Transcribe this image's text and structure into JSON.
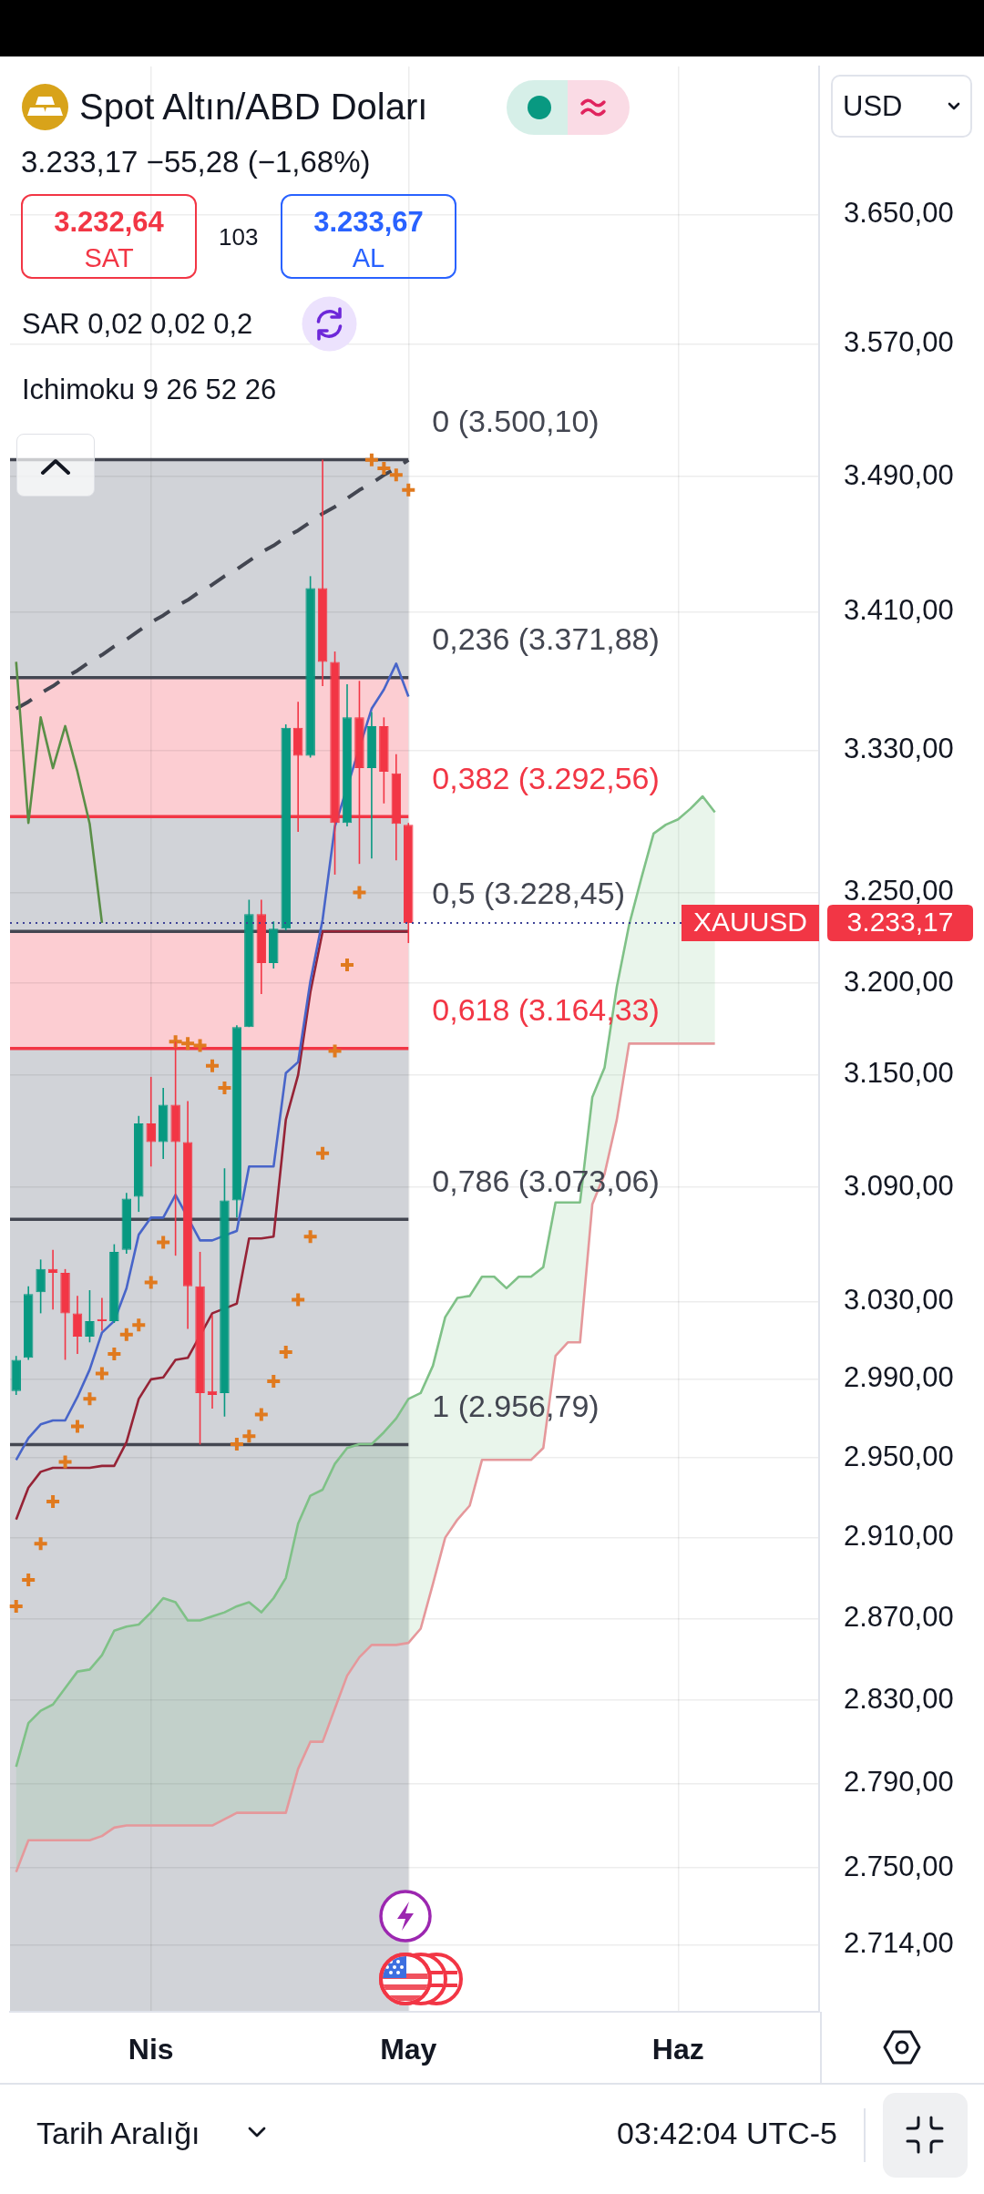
{
  "chart_data": {
    "type": "candlestick",
    "title": "Spot Altın/ABD Doları",
    "subtitle": "3.233,17 −55,28 (−1,68%)",
    "annotations": [
      "3.232,64",
      "SAT",
      "103",
      "3.233,67",
      "AL",
      "SAR 0,02 0,02 0,2",
      "Ichimoku 9 26 52 26",
      "USD",
      "Tarih Aralığı",
      "03:42:04 UTC-5",
      "3.233,17"
    ],
    "categories": [
      null,
      null,
      null,
      null,
      null,
      null,
      null,
      null,
      null,
      null,
      null,
      "Nis",
      null,
      null,
      null,
      null,
      null,
      null,
      null,
      null,
      null,
      null,
      null,
      null,
      null,
      null,
      null,
      null,
      null,
      null,
      null,
      null,
      "May",
      null,
      null,
      null,
      null,
      null,
      null,
      null,
      null,
      null,
      null,
      null,
      null,
      null,
      null,
      null,
      null,
      null,
      null,
      null,
      null,
      null,
      "Haz",
      null,
      null,
      null,
      null,
      null,
      null,
      null,
      null,
      null,
      null,
      null
    ],
    "ohlc": [
      [
        2984,
        3002,
        2982,
        3000
      ],
      [
        3001,
        3038,
        3000,
        3034
      ],
      [
        3035,
        3052,
        3024,
        3047
      ],
      [
        3047,
        3057,
        3026,
        3045
      ],
      [
        3045,
        3047,
        3000,
        3024
      ],
      [
        3024,
        3033,
        3003,
        3012
      ],
      [
        3012,
        3036,
        3009,
        3020
      ],
      [
        3021,
        3032,
        3015,
        3020
      ],
      [
        3020,
        3060,
        3019,
        3056
      ],
      [
        3057,
        3087,
        3055,
        3084
      ],
      [
        3085,
        3128,
        3077,
        3124
      ],
      [
        3124,
        3149,
        3101,
        3114
      ],
      [
        3114,
        3143,
        3105,
        3134
      ],
      [
        3134,
        3168,
        3054,
        3114
      ],
      [
        3114,
        3136,
        3016,
        3038
      ],
      [
        3038,
        3056,
        2956.79,
        2983
      ],
      [
        2984,
        3023,
        2975,
        2982
      ],
      [
        2983,
        3100,
        2971,
        3083
      ],
      [
        3083,
        3177,
        3074,
        3176
      ],
      [
        3176,
        3246,
        3176,
        3238
      ],
      [
        3238,
        3246,
        3194,
        3211
      ],
      [
        3211,
        3234,
        3208,
        3230
      ],
      [
        3230,
        3345,
        3229,
        3343
      ],
      [
        3343,
        3358,
        3284,
        3327
      ],
      [
        3327,
        3431,
        3326,
        3424
      ],
      [
        3424,
        3500.1,
        3367,
        3381
      ],
      [
        3381,
        3387,
        3260,
        3289
      ],
      [
        3289,
        3368,
        3287,
        3349
      ],
      [
        3349,
        3370,
        3266,
        3320
      ],
      [
        3320,
        3352,
        3269,
        3344
      ],
      [
        3344,
        3349,
        3300,
        3318
      ],
      [
        3317,
        3328,
        3268,
        3288.45
      ],
      [
        3288,
        3289,
        3222,
        3233.17
      ],
      null,
      null,
      null,
      null,
      null,
      null,
      null,
      null,
      null,
      null,
      null,
      null,
      null,
      null,
      null,
      null,
      null,
      null,
      null,
      null,
      null,
      null,
      null,
      null,
      null,
      null,
      null,
      null,
      null,
      null,
      null,
      null,
      null
    ],
    "colors": [
      "#089981",
      "#089981",
      "#089981",
      "#f23645",
      "#f23645",
      "#f23645",
      "#089981",
      "#f23645",
      "#089981",
      "#089981",
      "#089981",
      "#f23645",
      "#089981",
      "#f23645",
      "#f23645",
      "#f23645",
      "#f23645",
      "#089981",
      "#089981",
      "#089981",
      "#f23645",
      "#089981",
      "#089981",
      "#f23645",
      "#089981",
      "#f23645",
      "#f23645",
      "#089981",
      "#f23645",
      "#089981",
      "#f23645",
      "#f23645",
      "#f23645",
      null,
      null,
      null,
      null,
      null,
      null,
      null,
      null,
      null,
      null,
      null,
      null,
      null,
      null,
      null,
      null,
      null,
      null,
      null,
      null,
      null,
      null,
      null,
      null,
      null,
      null,
      null,
      null,
      null,
      null,
      null,
      null,
      null
    ],
    "series": [
      {
        "type": "line",
        "color": "#5a8f47",
        "values": [
          3381,
          3289,
          3349,
          3320,
          3344,
          3318,
          3288.45,
          3233.17,
          null,
          null,
          null,
          null,
          null,
          null,
          null,
          null,
          null,
          null,
          null,
          null,
          null,
          null,
          null,
          null,
          null,
          null,
          null,
          null,
          null,
          null,
          null,
          null,
          null,
          null,
          null,
          null,
          null,
          null,
          null,
          null,
          null,
          null,
          null,
          null,
          null,
          null,
          null,
          null,
          null,
          null,
          null,
          null,
          null,
          null,
          null,
          null,
          null,
          null,
          null,
          null,
          null,
          null,
          null,
          null,
          null,
          null
        ]
      },
      {
        "type": "line",
        "color": "#7fc187",
        "values": [
          2798,
          2819,
          2825,
          2828,
          2836,
          2844,
          2845,
          2852,
          2864,
          2866,
          2867,
          2873,
          2880,
          2878,
          2869,
          2869,
          2871,
          2873,
          2876,
          2878,
          2873,
          2880,
          2890,
          2917,
          2931,
          2934,
          2947,
          2955,
          2957,
          2957,
          2963,
          2970,
          2980,
          2983,
          2997,
          3022,
          3032,
          3033,
          3043,
          3043,
          3037,
          3043,
          3043,
          3048,
          3082,
          3082,
          3082,
          3138,
          3154,
          3198,
          3232,
          3258,
          3283,
          3288,
          3291,
          3297,
          3304,
          3295,
          null,
          null,
          null,
          null,
          null,
          null,
          null,
          null
        ],
        "upper": [
          2798,
          2819,
          2825,
          2828,
          2836,
          2844,
          2845,
          2852,
          2864,
          2866,
          2867,
          2873,
          2880,
          2878,
          2869,
          2869,
          2871,
          2873,
          2876,
          2878,
          2873,
          2880,
          2890,
          2917,
          2931,
          2934,
          2947,
          2955,
          2957,
          2957,
          2963,
          2970,
          2980,
          2983,
          2997,
          3022,
          3032,
          3033,
          3043,
          3043,
          3037,
          3043,
          3043,
          3048,
          3082,
          3082,
          3082,
          3138,
          3154,
          3198,
          3232,
          3258,
          3283,
          3288,
          3291,
          3297,
          3304,
          3295,
          null,
          null,
          null,
          null,
          null,
          null,
          null,
          null
        ],
        "lower": [
          2748,
          2763,
          2763,
          2763,
          2763,
          2763,
          2763,
          2765,
          2769,
          2770,
          2770,
          2770,
          2770,
          2770,
          2770,
          2770,
          2770,
          2773,
          2776,
          2776,
          2776,
          2776,
          2776,
          2797,
          2810,
          2810,
          2826,
          2842,
          2851,
          2857,
          2857,
          2857,
          2858,
          2865,
          2887,
          2910,
          2919,
          2926,
          2949,
          2949,
          2949,
          2949,
          2949,
          2955,
          3002,
          3009,
          3009,
          3081,
          3097,
          3126,
          3167,
          3167,
          3167,
          3167,
          3167,
          3167,
          3167,
          3167,
          null,
          null,
          null,
          null,
          null,
          null,
          null,
          null
        ]
      },
      {
        "type": "line",
        "color": "#e5989b",
        "values": [
          2748,
          2763,
          2763,
          2763,
          2763,
          2763,
          2763,
          2765,
          2769,
          2770,
          2770,
          2770,
          2770,
          2770,
          2770,
          2770,
          2770,
          2773,
          2776,
          2776,
          2776,
          2776,
          2776,
          2797,
          2810,
          2810,
          2826,
          2842,
          2851,
          2857,
          2857,
          2857,
          2858,
          2865,
          2887,
          2910,
          2919,
          2926,
          2949,
          2949,
          2949,
          2949,
          2949,
          2955,
          3002,
          3009,
          3009,
          3081,
          3097,
          3126,
          3167,
          3167,
          3167,
          3167,
          3167,
          3167,
          3167,
          3167,
          null,
          null,
          null,
          null,
          null,
          null,
          null,
          null
        ]
      },
      {
        "type": "line",
        "color": "#4865c9",
        "values": [
          2949,
          2960,
          2967,
          2969,
          2969,
          2981,
          2995,
          3014,
          3020,
          3037,
          3065,
          3074,
          3074,
          3086,
          null,
          3062,
          3062,
          null,
          3067,
          3101,
          3101,
          3101,
          3151,
          3157,
          3201,
          3235,
          3287,
          null,
          null,
          3354,
          3365,
          3380,
          3361,
          null,
          null,
          null,
          null,
          null,
          null,
          null,
          null,
          null,
          null,
          null,
          null,
          null,
          null,
          null,
          null,
          null,
          null,
          null,
          null,
          null,
          null,
          null,
          null,
          null,
          null,
          null,
          null,
          null,
          null,
          null,
          null,
          null
        ]
      },
      {
        "type": "line",
        "color": "#962336",
        "values": [
          2919,
          2935,
          2943,
          2945,
          2945,
          2945,
          2945,
          2946,
          2946,
          2958,
          2980,
          2990,
          2991,
          3000,
          3001,
          null,
          3024,
          null,
          3029,
          3063,
          3063,
          3064,
          3126,
          3150,
          3195,
          3228.45,
          3228.45,
          3228.45,
          3228.45,
          3228.45,
          3228.45,
          3228.45,
          3228.45,
          null,
          null,
          null,
          null,
          null,
          null,
          null,
          null,
          null,
          null,
          null,
          null,
          null,
          null,
          null,
          null,
          null,
          null,
          null,
          null,
          null,
          null,
          null,
          null,
          null,
          null,
          null,
          null,
          null,
          null,
          null,
          null,
          null
        ]
      },
      {
        "type": "line",
        "color": "#434651",
        "line_style": "dashed",
        "values": [
          3354,
          3358,
          3363,
          3367,
          3372,
          3376,
          3381,
          3385,
          3390,
          3394,
          3399,
          3404,
          3408,
          3413,
          3417,
          3422,
          3426,
          3431,
          3435,
          3440,
          3445,
          3449,
          3454,
          3458,
          3463,
          3468,
          3472,
          3477,
          3482,
          3486,
          3491,
          3495,
          3500,
          null,
          null,
          null,
          null,
          null,
          null,
          null,
          null,
          null,
          null,
          null,
          null,
          null,
          null,
          null,
          null,
          null,
          null,
          null,
          null,
          null,
          null,
          null,
          null,
          null,
          null,
          null,
          null,
          null,
          null,
          null,
          null,
          null
        ]
      },
      {
        "type": "scatter",
        "color": "#e07a1f",
        "marker": "cross",
        "values": [
          2876,
          2889,
          2907,
          2928,
          2948,
          2966,
          2980,
          2993,
          3003,
          3013,
          3018,
          3040,
          3061,
          3168,
          3167,
          3166,
          3155,
          3143,
          2957,
          2961,
          2972,
          2989,
          3004,
          3031,
          3064,
          3108,
          3163,
          3210,
          3250,
          3500,
          3495,
          3491,
          3482,
          null,
          null,
          null,
          null,
          null,
          null,
          null,
          null,
          null,
          null,
          null,
          null,
          null,
          null,
          null,
          null,
          null,
          null,
          null,
          null,
          null,
          null,
          null,
          null,
          null,
          null,
          null,
          null,
          null,
          null,
          null,
          null,
          null
        ]
      }
    ],
    "ylim": [
      2683,
      3744
    ],
    "log": true,
    "yticks": [
      {
        "value": 3650,
        "label": "3.650,00"
      },
      {
        "value": 3570,
        "label": "3.570,00"
      },
      {
        "value": 3490,
        "label": "3.490,00"
      },
      {
        "value": 3410,
        "label": "3.410,00"
      },
      {
        "value": 3330,
        "label": "3.330,00"
      },
      {
        "value": 3250,
        "label": "3.250,00"
      },
      {
        "value": 3200,
        "label": "3.200,00"
      },
      {
        "value": 3150,
        "label": "3.150,00"
      },
      {
        "value": 3090,
        "label": "3.090,00"
      },
      {
        "value": 3030,
        "label": "3.030,00"
      },
      {
        "value": 2990,
        "label": "2.990,00"
      },
      {
        "value": 2950,
        "label": "2.950,00"
      },
      {
        "value": 2910,
        "label": "2.910,00"
      },
      {
        "value": 2870,
        "label": "2.870,00"
      },
      {
        "value": 2830,
        "label": "2.830,00"
      },
      {
        "value": 2790,
        "label": "2.790,00"
      },
      {
        "value": 2750,
        "label": "2.750,00"
      },
      {
        "value": 2714,
        "label": "2.714,00"
      }
    ],
    "grid": true,
    "ref_lines": [
      {
        "axis": "y",
        "value": 3500.1,
        "label": "0 (3.500,10)",
        "color": "#434651"
      },
      {
        "axis": "y",
        "value": 3371.88,
        "label": "0,236 (3.371,88)",
        "color": "#434651"
      },
      {
        "axis": "y",
        "value": 3292.56,
        "label": "0,382 (3.292,56)",
        "color": "#f23645"
      },
      {
        "axis": "y",
        "value": 3228.45,
        "label": "0,5 (3.228,45)",
        "color": "#434651"
      },
      {
        "axis": "y",
        "value": 3164.33,
        "label": "0,618 (3.164,33)",
        "color": "#f23645"
      },
      {
        "axis": "y",
        "value": 3073.06,
        "label": "0,786 (3.073,06)",
        "color": "#434651"
      },
      {
        "axis": "y",
        "value": 2956.79,
        "label": "1 (2.956,79)",
        "color": "#434651"
      },
      {
        "axis": "y",
        "value": 3233.17,
        "label": "XAUUSD",
        "color": "#3d4296",
        "line_style": "dotted"
      }
    ],
    "bands": [
      {
        "axis": "y",
        "from": 3500.1,
        "to": 3371.88,
        "color": "#d1d3d8"
      },
      {
        "axis": "y",
        "from": 3371.88,
        "to": 3292.56,
        "color": "#fccdd2"
      },
      {
        "axis": "y",
        "from": 3292.56,
        "to": 3228.45,
        "color": "#d1d3d8"
      },
      {
        "axis": "y",
        "from": 3228.45,
        "to": 3164.33,
        "color": "#fccdd2"
      },
      {
        "axis": "y",
        "from": 3164.33,
        "to": 2683,
        "color": "#d1d3d8"
      }
    ]
  }
}
